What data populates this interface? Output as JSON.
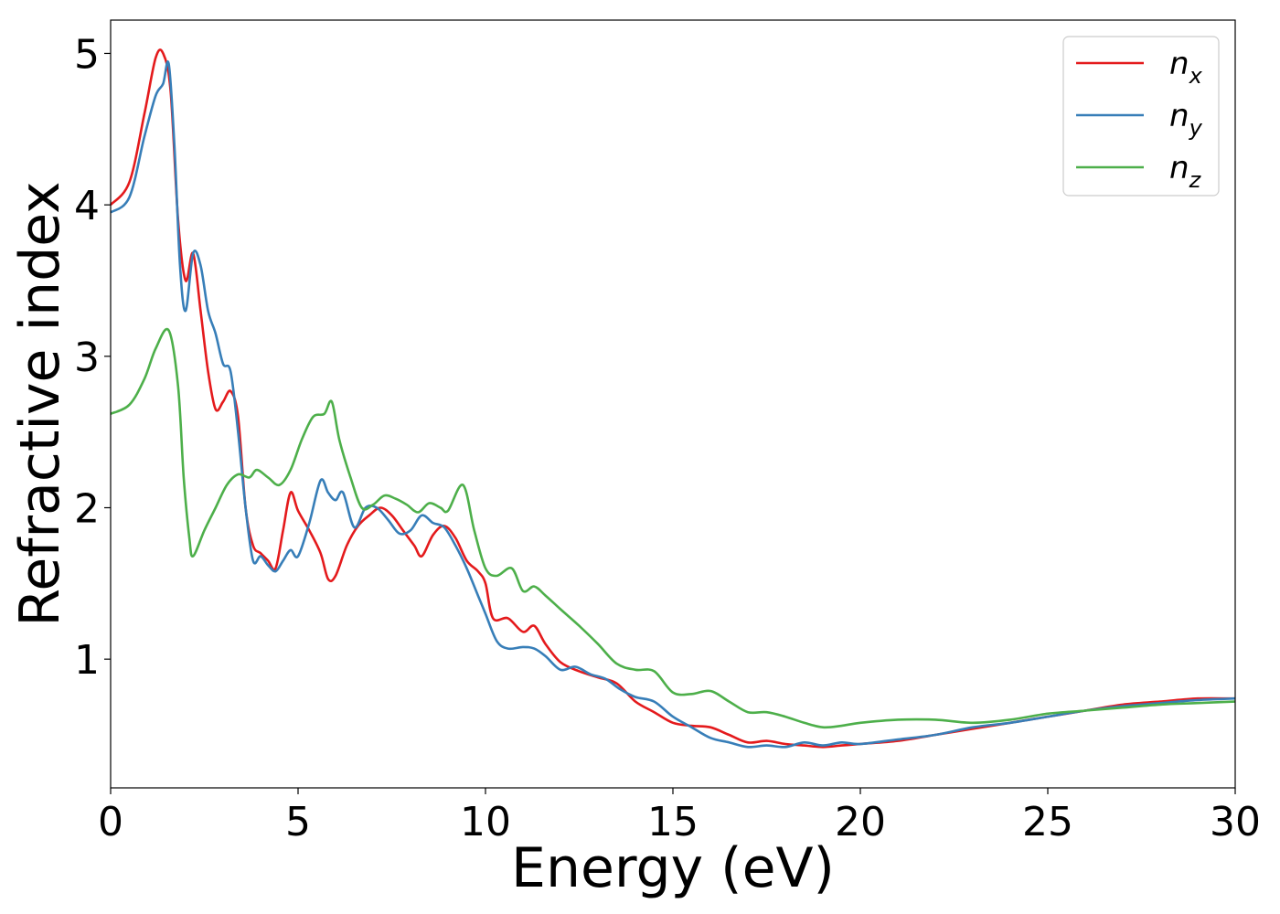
{
  "chart_data": {
    "type": "line",
    "title": "",
    "xlabel": "Energy (eV)",
    "ylabel": "Refractive index",
    "xlim": [
      0,
      30
    ],
    "ylim": [
      0.15,
      5.22
    ],
    "xticks": [
      0,
      5,
      10,
      15,
      20,
      25,
      30
    ],
    "yticks": [
      1,
      2,
      3,
      4,
      5
    ],
    "grid": false,
    "legend": {
      "position": "top-right",
      "entries": [
        {
          "base": "n",
          "sub": "x"
        },
        {
          "base": "n",
          "sub": "y"
        },
        {
          "base": "n",
          "sub": "z"
        }
      ]
    },
    "series": [
      {
        "name": "n_x",
        "color": "#e41a1c",
        "points": [
          [
            0,
            4.0
          ],
          [
            0.5,
            4.15
          ],
          [
            0.9,
            4.6
          ],
          [
            1.2,
            4.97
          ],
          [
            1.4,
            5.0
          ],
          [
            1.6,
            4.75
          ],
          [
            1.8,
            3.9
          ],
          [
            2.0,
            3.5
          ],
          [
            2.2,
            3.68
          ],
          [
            2.4,
            3.3
          ],
          [
            2.6,
            2.9
          ],
          [
            2.8,
            2.65
          ],
          [
            3.0,
            2.7
          ],
          [
            3.2,
            2.77
          ],
          [
            3.4,
            2.6
          ],
          [
            3.6,
            2.0
          ],
          [
            3.8,
            1.75
          ],
          [
            4.0,
            1.7
          ],
          [
            4.2,
            1.65
          ],
          [
            4.4,
            1.6
          ],
          [
            4.6,
            1.85
          ],
          [
            4.8,
            2.1
          ],
          [
            5.0,
            1.98
          ],
          [
            5.3,
            1.85
          ],
          [
            5.6,
            1.7
          ],
          [
            5.8,
            1.53
          ],
          [
            6.0,
            1.55
          ],
          [
            6.3,
            1.75
          ],
          [
            6.6,
            1.88
          ],
          [
            6.9,
            1.95
          ],
          [
            7.2,
            2.0
          ],
          [
            7.5,
            1.95
          ],
          [
            7.8,
            1.85
          ],
          [
            8.1,
            1.75
          ],
          [
            8.3,
            1.68
          ],
          [
            8.6,
            1.82
          ],
          [
            8.9,
            1.88
          ],
          [
            9.2,
            1.8
          ],
          [
            9.5,
            1.65
          ],
          [
            9.8,
            1.58
          ],
          [
            10.0,
            1.5
          ],
          [
            10.2,
            1.27
          ],
          [
            10.6,
            1.27
          ],
          [
            11.0,
            1.18
          ],
          [
            11.3,
            1.22
          ],
          [
            11.6,
            1.1
          ],
          [
            12.0,
            0.98
          ],
          [
            12.5,
            0.92
          ],
          [
            13.0,
            0.88
          ],
          [
            13.5,
            0.84
          ],
          [
            14.0,
            0.72
          ],
          [
            14.5,
            0.65
          ],
          [
            15.0,
            0.58
          ],
          [
            15.5,
            0.56
          ],
          [
            16.0,
            0.55
          ],
          [
            16.5,
            0.5
          ],
          [
            17.0,
            0.45
          ],
          [
            17.5,
            0.46
          ],
          [
            18.0,
            0.44
          ],
          [
            18.5,
            0.43
          ],
          [
            19.0,
            0.42
          ],
          [
            19.5,
            0.43
          ],
          [
            20.0,
            0.44
          ],
          [
            21.0,
            0.46
          ],
          [
            22.0,
            0.5
          ],
          [
            23.0,
            0.54
          ],
          [
            24.0,
            0.58
          ],
          [
            25.0,
            0.62
          ],
          [
            26.0,
            0.66
          ],
          [
            27.0,
            0.7
          ],
          [
            28.0,
            0.72
          ],
          [
            29.0,
            0.74
          ],
          [
            30.0,
            0.74
          ]
        ]
      },
      {
        "name": "n_y",
        "color": "#377eb8",
        "points": [
          [
            0,
            3.95
          ],
          [
            0.5,
            4.05
          ],
          [
            0.9,
            4.45
          ],
          [
            1.2,
            4.72
          ],
          [
            1.4,
            4.8
          ],
          [
            1.55,
            4.93
          ],
          [
            1.7,
            4.4
          ],
          [
            1.85,
            3.6
          ],
          [
            2.0,
            3.3
          ],
          [
            2.2,
            3.68
          ],
          [
            2.4,
            3.6
          ],
          [
            2.6,
            3.3
          ],
          [
            2.8,
            3.15
          ],
          [
            3.0,
            2.95
          ],
          [
            3.2,
            2.9
          ],
          [
            3.4,
            2.5
          ],
          [
            3.6,
            2.0
          ],
          [
            3.8,
            1.65
          ],
          [
            4.0,
            1.68
          ],
          [
            4.2,
            1.62
          ],
          [
            4.4,
            1.58
          ],
          [
            4.6,
            1.65
          ],
          [
            4.8,
            1.72
          ],
          [
            5.0,
            1.68
          ],
          [
            5.3,
            1.9
          ],
          [
            5.6,
            2.18
          ],
          [
            5.8,
            2.1
          ],
          [
            6.0,
            2.05
          ],
          [
            6.2,
            2.1
          ],
          [
            6.5,
            1.87
          ],
          [
            6.8,
            2.0
          ],
          [
            7.1,
            2.0
          ],
          [
            7.4,
            1.92
          ],
          [
            7.7,
            1.83
          ],
          [
            8.0,
            1.85
          ],
          [
            8.3,
            1.95
          ],
          [
            8.6,
            1.9
          ],
          [
            8.9,
            1.87
          ],
          [
            9.2,
            1.75
          ],
          [
            9.5,
            1.6
          ],
          [
            9.8,
            1.42
          ],
          [
            10.0,
            1.3
          ],
          [
            10.3,
            1.12
          ],
          [
            10.6,
            1.07
          ],
          [
            11.0,
            1.08
          ],
          [
            11.3,
            1.07
          ],
          [
            11.6,
            1.02
          ],
          [
            12.0,
            0.93
          ],
          [
            12.4,
            0.95
          ],
          [
            12.8,
            0.9
          ],
          [
            13.2,
            0.87
          ],
          [
            13.6,
            0.8
          ],
          [
            14.0,
            0.75
          ],
          [
            14.5,
            0.72
          ],
          [
            15.0,
            0.62
          ],
          [
            15.5,
            0.55
          ],
          [
            16.0,
            0.48
          ],
          [
            16.5,
            0.45
          ],
          [
            17.0,
            0.42
          ],
          [
            17.5,
            0.43
          ],
          [
            18.0,
            0.42
          ],
          [
            18.5,
            0.45
          ],
          [
            19.0,
            0.43
          ],
          [
            19.5,
            0.45
          ],
          [
            20.0,
            0.44
          ],
          [
            21.0,
            0.47
          ],
          [
            22.0,
            0.5
          ],
          [
            23.0,
            0.55
          ],
          [
            24.0,
            0.58
          ],
          [
            25.0,
            0.62
          ],
          [
            26.0,
            0.66
          ],
          [
            27.0,
            0.69
          ],
          [
            28.0,
            0.71
          ],
          [
            29.0,
            0.73
          ],
          [
            30.0,
            0.74
          ]
        ]
      },
      {
        "name": "n_z",
        "color": "#4daf4a",
        "points": [
          [
            0,
            2.62
          ],
          [
            0.5,
            2.68
          ],
          [
            0.9,
            2.85
          ],
          [
            1.2,
            3.05
          ],
          [
            1.55,
            3.17
          ],
          [
            1.8,
            2.8
          ],
          [
            1.95,
            2.2
          ],
          [
            2.1,
            1.8
          ],
          [
            2.2,
            1.68
          ],
          [
            2.5,
            1.85
          ],
          [
            2.8,
            2.0
          ],
          [
            3.1,
            2.15
          ],
          [
            3.4,
            2.22
          ],
          [
            3.7,
            2.2
          ],
          [
            3.9,
            2.25
          ],
          [
            4.2,
            2.2
          ],
          [
            4.5,
            2.15
          ],
          [
            4.8,
            2.25
          ],
          [
            5.1,
            2.45
          ],
          [
            5.4,
            2.6
          ],
          [
            5.7,
            2.62
          ],
          [
            5.9,
            2.7
          ],
          [
            6.1,
            2.45
          ],
          [
            6.4,
            2.2
          ],
          [
            6.7,
            2.0
          ],
          [
            7.0,
            2.02
          ],
          [
            7.3,
            2.08
          ],
          [
            7.6,
            2.06
          ],
          [
            7.9,
            2.02
          ],
          [
            8.2,
            1.97
          ],
          [
            8.5,
            2.03
          ],
          [
            8.8,
            2.0
          ],
          [
            9.0,
            1.98
          ],
          [
            9.4,
            2.15
          ],
          [
            9.7,
            1.85
          ],
          [
            10.0,
            1.6
          ],
          [
            10.3,
            1.55
          ],
          [
            10.7,
            1.6
          ],
          [
            11.0,
            1.45
          ],
          [
            11.3,
            1.48
          ],
          [
            11.6,
            1.42
          ],
          [
            12.0,
            1.33
          ],
          [
            12.5,
            1.22
          ],
          [
            13.0,
            1.1
          ],
          [
            13.5,
            0.97
          ],
          [
            14.0,
            0.93
          ],
          [
            14.5,
            0.92
          ],
          [
            15.0,
            0.78
          ],
          [
            15.5,
            0.77
          ],
          [
            16.0,
            0.79
          ],
          [
            16.5,
            0.72
          ],
          [
            17.0,
            0.65
          ],
          [
            17.5,
            0.65
          ],
          [
            18.0,
            0.62
          ],
          [
            18.5,
            0.58
          ],
          [
            19.0,
            0.55
          ],
          [
            19.5,
            0.56
          ],
          [
            20.0,
            0.58
          ],
          [
            21.0,
            0.6
          ],
          [
            22.0,
            0.6
          ],
          [
            23.0,
            0.58
          ],
          [
            24.0,
            0.6
          ],
          [
            25.0,
            0.64
          ],
          [
            26.0,
            0.66
          ],
          [
            27.0,
            0.68
          ],
          [
            28.0,
            0.7
          ],
          [
            29.0,
            0.71
          ],
          [
            30.0,
            0.72
          ]
        ]
      }
    ]
  }
}
